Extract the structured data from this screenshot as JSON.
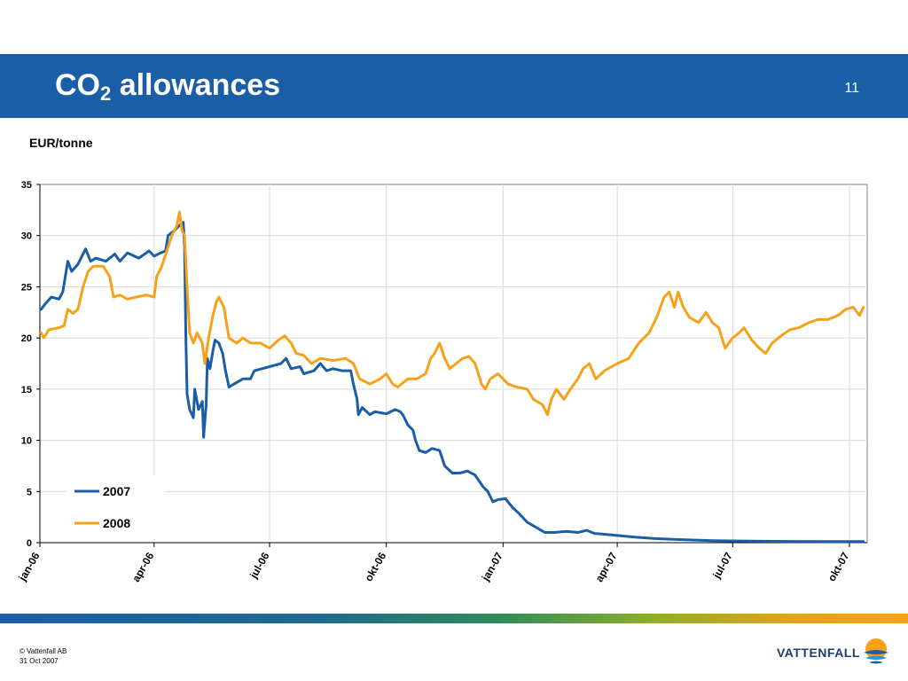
{
  "slide": {
    "title_main": "CO",
    "title_sub": "2",
    "title_rest": " allowances",
    "page_number": "11",
    "unit_label": "EUR/tonne"
  },
  "footer": {
    "line1": "© Vattenfall AB",
    "line2": "31 Oct 2007"
  },
  "logo": {
    "text": "VATTENFALL"
  },
  "colors": {
    "brand_blue": "#1a5ea8",
    "series_2007": "#1a5ea8",
    "series_2008": "#f7a11a"
  },
  "chart_data": {
    "type": "line",
    "title": "",
    "xlabel": "",
    "ylabel": "EUR/tonne",
    "ylim": [
      0,
      35
    ],
    "yticks": [
      0,
      5,
      10,
      15,
      20,
      25,
      30,
      35
    ],
    "xlim": [
      "2006-01-01",
      "2007-10-15"
    ],
    "xticks": [
      {
        "date": "2006-01-01",
        "label": "jan-06"
      },
      {
        "date": "2006-04-01",
        "label": "apr-06"
      },
      {
        "date": "2006-07-01",
        "label": "jul-06"
      },
      {
        "date": "2006-10-01",
        "label": "okt-06"
      },
      {
        "date": "2007-01-01",
        "label": "jan-07"
      },
      {
        "date": "2007-04-01",
        "label": "apr-07"
      },
      {
        "date": "2007-07-01",
        "label": "jul-07"
      },
      {
        "date": "2007-10-01",
        "label": "okt-07"
      }
    ],
    "grid": true,
    "legend_position": "lower-left",
    "series": [
      {
        "name": "2007",
        "color": "#1a5ea8",
        "points": [
          [
            "2006-01-02",
            22.8
          ],
          [
            "2006-01-05",
            23.3
          ],
          [
            "2006-01-10",
            24.0
          ],
          [
            "2006-01-16",
            23.8
          ],
          [
            "2006-01-19",
            24.5
          ],
          [
            "2006-01-23",
            27.5
          ],
          [
            "2006-01-26",
            26.5
          ],
          [
            "2006-01-31",
            27.2
          ],
          [
            "2006-02-06",
            28.7
          ],
          [
            "2006-02-10",
            27.5
          ],
          [
            "2006-02-14",
            27.8
          ],
          [
            "2006-02-22",
            27.5
          ],
          [
            "2006-03-01",
            28.2
          ],
          [
            "2006-03-05",
            27.5
          ],
          [
            "2006-03-11",
            28.3
          ],
          [
            "2006-03-20",
            27.8
          ],
          [
            "2006-03-28",
            28.5
          ],
          [
            "2006-04-01",
            28.0
          ],
          [
            "2006-04-06",
            28.3
          ],
          [
            "2006-04-10",
            28.5
          ],
          [
            "2006-04-12",
            30.0
          ],
          [
            "2006-04-17",
            30.5
          ],
          [
            "2006-04-21",
            31.0
          ],
          [
            "2006-04-24",
            31.3
          ],
          [
            "2006-04-25",
            29.0
          ],
          [
            "2006-04-26",
            20.0
          ],
          [
            "2006-04-27",
            14.5
          ],
          [
            "2006-04-29",
            13.0
          ],
          [
            "2006-05-02",
            12.2
          ],
          [
            "2006-05-03",
            15.0
          ],
          [
            "2006-05-06",
            13.0
          ],
          [
            "2006-05-09",
            13.8
          ],
          [
            "2006-05-10",
            10.3
          ],
          [
            "2006-05-12",
            13.5
          ],
          [
            "2006-05-13",
            18.0
          ],
          [
            "2006-05-15",
            17.0
          ],
          [
            "2006-05-17",
            18.5
          ],
          [
            "2006-05-19",
            19.8
          ],
          [
            "2006-05-22",
            19.5
          ],
          [
            "2006-05-25",
            18.5
          ],
          [
            "2006-05-27",
            17.0
          ],
          [
            "2006-05-30",
            15.2
          ],
          [
            "2006-06-03",
            15.5
          ],
          [
            "2006-06-10",
            16.0
          ],
          [
            "2006-06-16",
            16.0
          ],
          [
            "2006-06-19",
            16.8
          ],
          [
            "2006-06-25",
            17.0
          ],
          [
            "2006-07-01",
            17.2
          ],
          [
            "2006-07-10",
            17.5
          ],
          [
            "2006-07-14",
            18.0
          ],
          [
            "2006-07-18",
            17.0
          ],
          [
            "2006-07-25",
            17.2
          ],
          [
            "2006-07-28",
            16.5
          ],
          [
            "2006-08-05",
            16.8
          ],
          [
            "2006-08-10",
            17.5
          ],
          [
            "2006-08-15",
            16.8
          ],
          [
            "2006-08-20",
            17.0
          ],
          [
            "2006-08-27",
            16.8
          ],
          [
            "2006-09-03",
            16.8
          ],
          [
            "2006-09-05",
            15.5
          ],
          [
            "2006-09-08",
            14.0
          ],
          [
            "2006-09-09",
            12.5
          ],
          [
            "2006-09-12",
            13.2
          ],
          [
            "2006-09-18",
            12.5
          ],
          [
            "2006-09-22",
            12.8
          ],
          [
            "2006-10-01",
            12.6
          ],
          [
            "2006-10-08",
            13.0
          ],
          [
            "2006-10-12",
            12.8
          ],
          [
            "2006-10-14",
            12.5
          ],
          [
            "2006-10-18",
            11.5
          ],
          [
            "2006-10-22",
            11.0
          ],
          [
            "2006-10-24",
            10.0
          ],
          [
            "2006-10-27",
            9.0
          ],
          [
            "2006-11-01",
            8.8
          ],
          [
            "2006-11-06",
            9.2
          ],
          [
            "2006-11-12",
            9.0
          ],
          [
            "2006-11-16",
            7.5
          ],
          [
            "2006-11-22",
            6.8
          ],
          [
            "2006-11-28",
            6.8
          ],
          [
            "2006-12-04",
            7.0
          ],
          [
            "2006-12-10",
            6.6
          ],
          [
            "2006-12-16",
            5.5
          ],
          [
            "2006-12-20",
            5.0
          ],
          [
            "2006-12-24",
            4.0
          ],
          [
            "2006-12-28",
            4.2
          ],
          [
            "2007-01-03",
            4.3
          ],
          [
            "2007-01-08",
            3.5
          ],
          [
            "2007-01-14",
            2.8
          ],
          [
            "2007-01-20",
            2.0
          ],
          [
            "2007-01-27",
            1.5
          ],
          [
            "2007-02-03",
            1.0
          ],
          [
            "2007-02-10",
            1.0
          ],
          [
            "2007-02-20",
            1.1
          ],
          [
            "2007-03-01",
            1.0
          ],
          [
            "2007-03-08",
            1.2
          ],
          [
            "2007-03-14",
            0.9
          ],
          [
            "2007-03-20",
            0.85
          ],
          [
            "2007-04-01",
            0.7
          ],
          [
            "2007-04-15",
            0.55
          ],
          [
            "2007-05-01",
            0.4
          ],
          [
            "2007-05-20",
            0.3
          ],
          [
            "2007-06-15",
            0.2
          ],
          [
            "2007-07-15",
            0.15
          ],
          [
            "2007-08-15",
            0.12
          ],
          [
            "2007-09-15",
            0.1
          ],
          [
            "2007-10-12",
            0.1
          ]
        ]
      },
      {
        "name": "2008",
        "color": "#f7a11a",
        "points": [
          [
            "2006-01-02",
            20.5
          ],
          [
            "2006-01-04",
            20.0
          ],
          [
            "2006-01-08",
            20.8
          ],
          [
            "2006-01-16",
            21.0
          ],
          [
            "2006-01-20",
            21.2
          ],
          [
            "2006-01-23",
            22.8
          ],
          [
            "2006-01-27",
            22.4
          ],
          [
            "2006-01-31",
            22.8
          ],
          [
            "2006-02-04",
            25.0
          ],
          [
            "2006-02-08",
            26.5
          ],
          [
            "2006-02-12",
            27.0
          ],
          [
            "2006-02-20",
            27.0
          ],
          [
            "2006-02-25",
            26.0
          ],
          [
            "2006-02-28",
            24.0
          ],
          [
            "2006-03-05",
            24.2
          ],
          [
            "2006-03-11",
            23.8
          ],
          [
            "2006-03-18",
            24.0
          ],
          [
            "2006-03-26",
            24.2
          ],
          [
            "2006-04-01",
            24.0
          ],
          [
            "2006-04-03",
            26.0
          ],
          [
            "2006-04-07",
            27.0
          ],
          [
            "2006-04-11",
            28.5
          ],
          [
            "2006-04-15",
            30.0
          ],
          [
            "2006-04-19",
            31.0
          ],
          [
            "2006-04-21",
            32.3
          ],
          [
            "2006-04-23",
            30.5
          ],
          [
            "2006-04-25",
            30.0
          ],
          [
            "2006-04-27",
            25.0
          ],
          [
            "2006-04-29",
            20.5
          ],
          [
            "2006-05-02",
            19.5
          ],
          [
            "2006-05-05",
            20.5
          ],
          [
            "2006-05-09",
            19.5
          ],
          [
            "2006-05-11",
            17.5
          ],
          [
            "2006-05-14",
            20.0
          ],
          [
            "2006-05-17",
            22.0
          ],
          [
            "2006-05-20",
            23.5
          ],
          [
            "2006-05-22",
            24.0
          ],
          [
            "2006-05-26",
            23.0
          ],
          [
            "2006-05-30",
            20.0
          ],
          [
            "2006-06-05",
            19.5
          ],
          [
            "2006-06-10",
            20.0
          ],
          [
            "2006-06-16",
            19.5
          ],
          [
            "2006-06-24",
            19.5
          ],
          [
            "2006-07-01",
            19.0
          ],
          [
            "2006-07-08",
            19.8
          ],
          [
            "2006-07-13",
            20.2
          ],
          [
            "2006-07-18",
            19.5
          ],
          [
            "2006-07-22",
            18.5
          ],
          [
            "2006-07-28",
            18.3
          ],
          [
            "2006-08-03",
            17.5
          ],
          [
            "2006-08-10",
            18.0
          ],
          [
            "2006-08-20",
            17.8
          ],
          [
            "2006-08-30",
            18.0
          ],
          [
            "2006-09-05",
            17.5
          ],
          [
            "2006-09-10",
            16.0
          ],
          [
            "2006-09-18",
            15.5
          ],
          [
            "2006-09-26",
            16.0
          ],
          [
            "2006-10-01",
            16.5
          ],
          [
            "2006-10-06",
            15.5
          ],
          [
            "2006-10-10",
            15.2
          ],
          [
            "2006-10-18",
            16.0
          ],
          [
            "2006-10-25",
            16.0
          ],
          [
            "2006-11-01",
            16.5
          ],
          [
            "2006-11-05",
            18.0
          ],
          [
            "2006-11-08",
            18.5
          ],
          [
            "2006-11-12",
            19.5
          ],
          [
            "2006-11-16",
            18.0
          ],
          [
            "2006-11-20",
            17.0
          ],
          [
            "2006-11-25",
            17.5
          ],
          [
            "2006-11-30",
            18.0
          ],
          [
            "2006-12-05",
            18.2
          ],
          [
            "2006-12-10",
            17.5
          ],
          [
            "2006-12-15",
            15.5
          ],
          [
            "2006-12-18",
            15.0
          ],
          [
            "2006-12-22",
            16.0
          ],
          [
            "2006-12-28",
            16.5
          ],
          [
            "2007-01-05",
            15.5
          ],
          [
            "2007-01-12",
            15.2
          ],
          [
            "2007-01-20",
            15.0
          ],
          [
            "2007-01-25",
            14.0
          ],
          [
            "2007-02-01",
            13.5
          ],
          [
            "2007-02-05",
            12.5
          ],
          [
            "2007-02-08",
            14.0
          ],
          [
            "2007-02-12",
            15.0
          ],
          [
            "2007-02-18",
            14.0
          ],
          [
            "2007-02-23",
            15.0
          ],
          [
            "2007-03-01",
            16.0
          ],
          [
            "2007-03-05",
            17.0
          ],
          [
            "2007-03-10",
            17.5
          ],
          [
            "2007-03-15",
            16.0
          ],
          [
            "2007-03-22",
            16.8
          ],
          [
            "2007-04-01",
            17.5
          ],
          [
            "2007-04-10",
            18.0
          ],
          [
            "2007-04-18",
            19.5
          ],
          [
            "2007-04-26",
            20.5
          ],
          [
            "2007-05-02",
            22.0
          ],
          [
            "2007-05-08",
            24.0
          ],
          [
            "2007-05-12",
            24.5
          ],
          [
            "2007-05-16",
            23.0
          ],
          [
            "2007-05-19",
            24.5
          ],
          [
            "2007-05-23",
            23.0
          ],
          [
            "2007-05-28",
            22.0
          ],
          [
            "2007-06-04",
            21.5
          ],
          [
            "2007-06-10",
            22.5
          ],
          [
            "2007-06-15",
            21.5
          ],
          [
            "2007-06-20",
            21.0
          ],
          [
            "2007-06-25",
            19.0
          ],
          [
            "2007-07-01",
            20.0
          ],
          [
            "2007-07-06",
            20.5
          ],
          [
            "2007-07-10",
            21.0
          ],
          [
            "2007-07-16",
            19.8
          ],
          [
            "2007-07-22",
            19.0
          ],
          [
            "2007-07-27",
            18.5
          ],
          [
            "2007-08-01",
            19.5
          ],
          [
            "2007-08-08",
            20.2
          ],
          [
            "2007-08-15",
            20.8
          ],
          [
            "2007-08-22",
            21.0
          ],
          [
            "2007-08-30",
            21.5
          ],
          [
            "2007-09-06",
            21.8
          ],
          [
            "2007-09-14",
            21.8
          ],
          [
            "2007-09-22",
            22.2
          ],
          [
            "2007-09-28",
            22.8
          ],
          [
            "2007-10-04",
            23.0
          ],
          [
            "2007-10-09",
            22.2
          ],
          [
            "2007-10-12",
            23.0
          ]
        ]
      }
    ]
  }
}
